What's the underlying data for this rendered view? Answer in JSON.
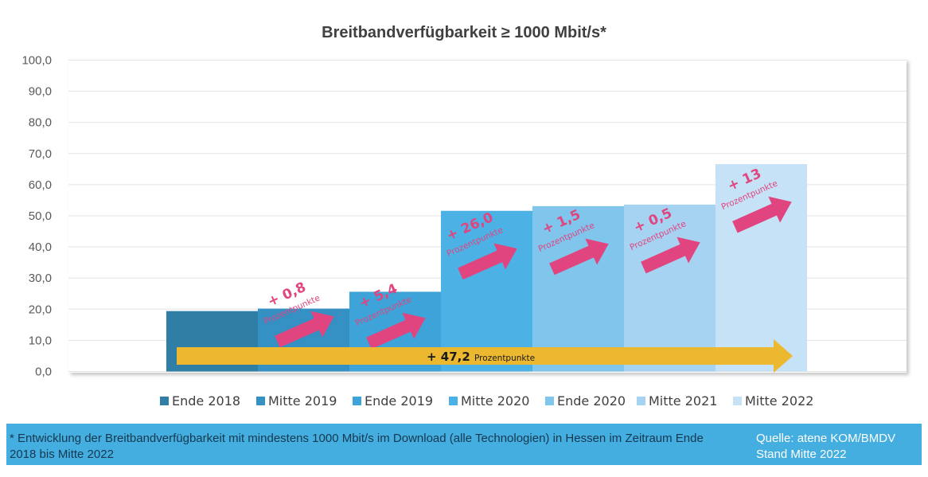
{
  "chart_data": {
    "type": "bar",
    "title": "Breitbandverfügbarkeit ≥ 1000 Mbit/s*",
    "categories": [
      "Ende 2018",
      "Mitte 2019",
      "Ende 2019",
      "Mitte 2020",
      "Ende 2020",
      "Mitte 2021",
      "Mitte 2022"
    ],
    "values": [
      19.4,
      20.2,
      25.6,
      51.6,
      53.1,
      53.6,
      66.6
    ],
    "ylim": [
      0,
      100
    ],
    "yticks": [
      "0,0",
      "10,0",
      "20,0",
      "30,0",
      "40,0",
      "50,0",
      "60,0",
      "70,0",
      "80,0",
      "90,0",
      "100,0"
    ],
    "grid": true,
    "legend": "bottom",
    "colors": [
      "#2e7ea5",
      "#3590c4",
      "#3da3d8",
      "#4cb2e6",
      "#80c5ec",
      "#a6d3f1",
      "#c6e2f6"
    ],
    "annotations": [
      {
        "value": "+ 0,8",
        "unit": "Prozentpunkte",
        "after": "Mitte 2019"
      },
      {
        "value": "+ 5,4",
        "unit": "Prozentpunkte",
        "after": "Ende 2019"
      },
      {
        "value": "+ 26,0",
        "unit": "Prozentpunkte",
        "after": "Mitte 2020"
      },
      {
        "value": "+ 1,5",
        "unit": "Prozentpunkte",
        "after": "Ende 2020"
      },
      {
        "value": "+ 0,5",
        "unit": "Prozentpunkte",
        "after": "Mitte 2021"
      },
      {
        "value": "+ 13",
        "unit": "Prozentpunkte",
        "after": "Mitte 2022"
      }
    ],
    "total": {
      "value": "+ 47,2",
      "unit": "Prozentpunkte"
    },
    "annotation_color": "#e0457f",
    "total_color": "#ebb830"
  },
  "footer": {
    "note": "* Entwicklung der Breitbandverfügbarkeit mit mindestens 1000 Mbit/s im Download (alle Technologien) in Hessen im Zeitraum Ende 2018 bis Mitte 2022",
    "source_line1": "Quelle: atene KOM/BMDV",
    "source_line2": "Stand Mitte 2022"
  }
}
